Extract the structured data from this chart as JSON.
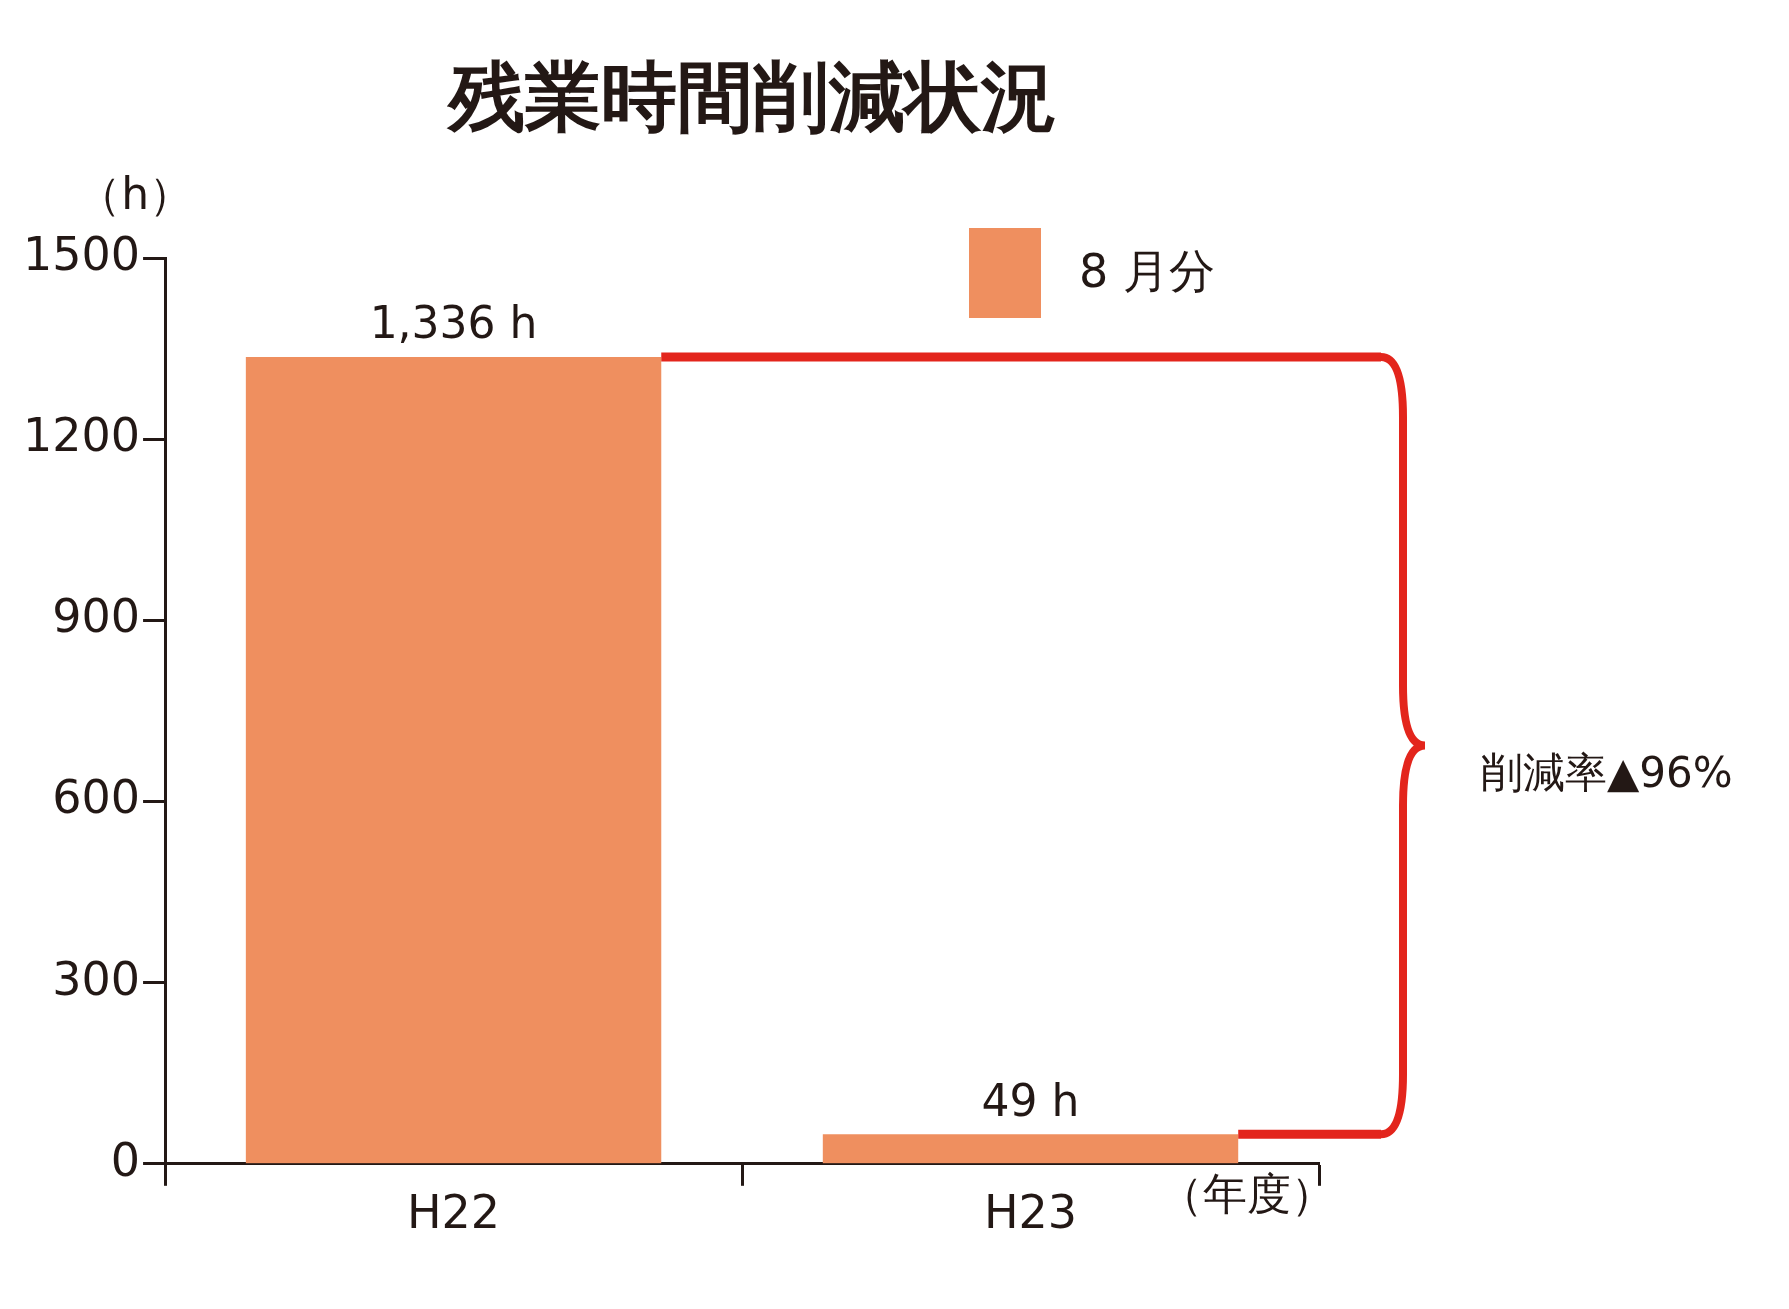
{
  "chart_data": {
    "type": "bar",
    "title": "残業時間削減状況",
    "ylabel": "（h）",
    "xlabel": "（年度）",
    "categories": [
      "H22",
      "H23"
    ],
    "series": [
      {
        "name": "8 月分",
        "color": "#ef8f5f",
        "values": [
          1336,
          49
        ],
        "value_labels": [
          "1,336 h",
          "49 h"
        ]
      }
    ],
    "ylim": [
      0,
      1500
    ],
    "yticks": [
      0,
      300,
      600,
      900,
      1200,
      1500
    ],
    "grid": false,
    "legend": "top right",
    "ref_lines": [
      {
        "axis": "y",
        "value": 1336,
        "color": "#e3251c"
      }
    ],
    "annotations": [
      "削減率▲96%"
    ]
  }
}
